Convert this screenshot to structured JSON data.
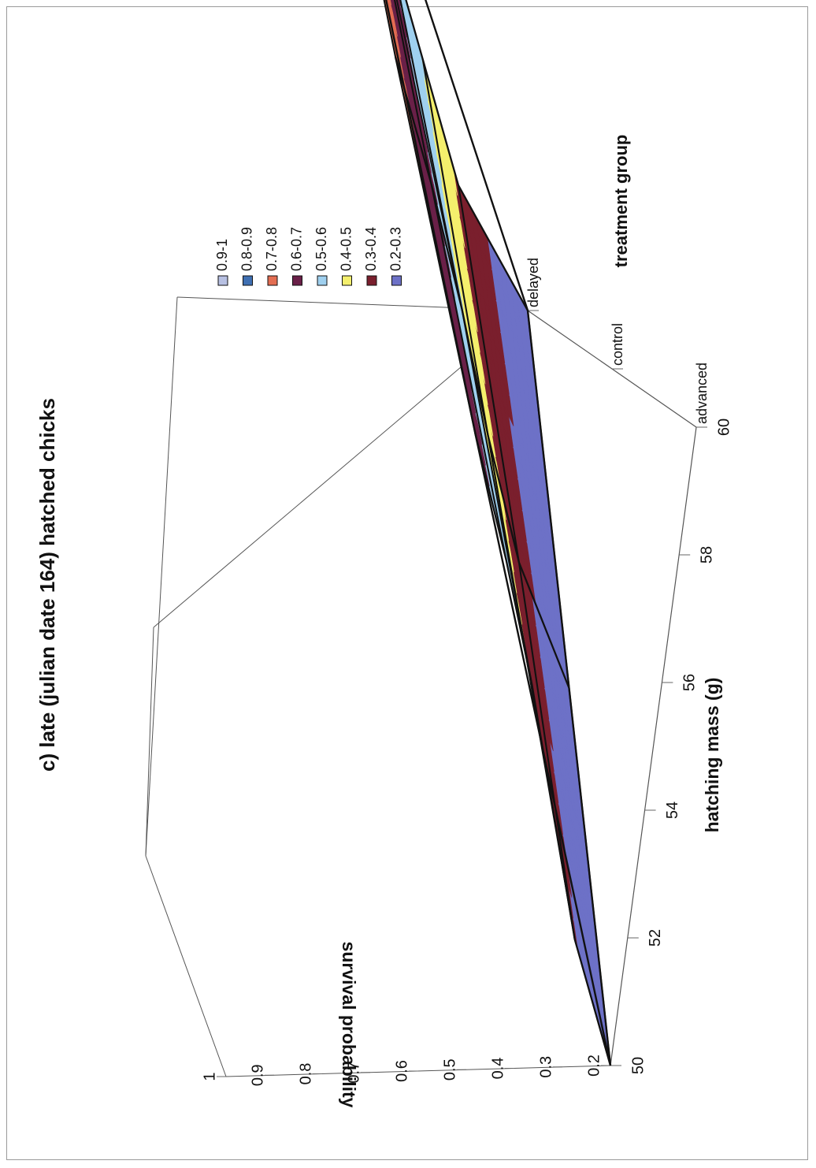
{
  "chart_data": {
    "type": "surface",
    "title": "c) late (julian date 164) hatched chicks",
    "xlabel": "hatching mass (g)",
    "ylabel": "survival probability",
    "zlabel": "treatment group",
    "x_ticks": [
      "50",
      "52",
      "54",
      "56",
      "58",
      "60"
    ],
    "y_ticks": [
      "0.2",
      "0.3",
      "0.4",
      "0.5",
      "0.6",
      "0.7",
      "0.8",
      "0.9",
      "1"
    ],
    "treatment_ticks": [
      "advanced",
      "control",
      "delayed"
    ],
    "xlim": [
      50,
      60
    ],
    "ylim": [
      0.2,
      1
    ],
    "legend": {
      "placement": "top-right",
      "entries": [
        {
          "label": "0.9-1",
          "color": "#b7c0e2"
        },
        {
          "label": "0.8-0.9",
          "color": "#3f6fb2"
        },
        {
          "label": "0.7-0.8",
          "color": "#e36d52"
        },
        {
          "label": "0.6-0.7",
          "color": "#6a2048"
        },
        {
          "label": "0.5-0.6",
          "color": "#9fd0ef"
        },
        {
          "label": "0.4-0.5",
          "color": "#f4ef6d"
        },
        {
          "label": "0.3-0.4",
          "color": "#7a1f2d"
        },
        {
          "label": "0.2-0.3",
          "color": "#6d71c7"
        }
      ]
    },
    "series": [
      {
        "name": "advanced",
        "x": [
          50,
          52,
          54,
          56,
          58,
          60
        ],
        "y": [
          0.2,
          0.31,
          0.39,
          0.47,
          0.56,
          0.66
        ]
      },
      {
        "name": "control",
        "x": [
          50,
          52,
          54,
          56,
          58,
          60
        ],
        "y": [
          0.2,
          0.34,
          0.44,
          0.53,
          0.63,
          0.74
        ]
      },
      {
        "name": "delayed",
        "x": [
          50,
          52,
          54,
          56,
          58,
          60
        ],
        "y": [
          0.2,
          0.38,
          0.49,
          0.6,
          0.7,
          0.81
        ]
      }
    ]
  }
}
